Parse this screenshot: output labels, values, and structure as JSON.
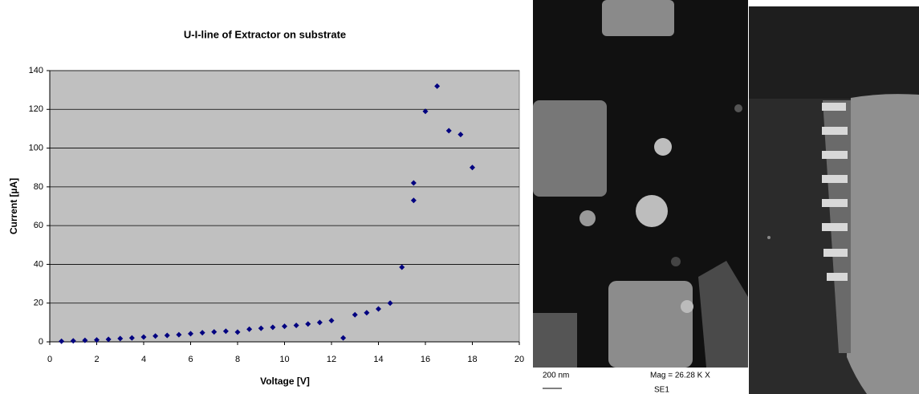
{
  "chart_data": {
    "type": "scatter",
    "title": "U-I-line of Extractor on substrate",
    "x_label": "Voltage [V]",
    "y_label": "Current [µA]",
    "x": [
      0.5,
      1,
      1.5,
      2,
      2.5,
      3,
      3.5,
      4,
      4.5,
      5,
      5.5,
      6,
      6.5,
      7,
      7.5,
      8,
      8.5,
      9,
      9.5,
      10,
      10.5,
      11,
      11.5,
      12,
      12.5,
      13,
      13.5,
      14,
      14.5,
      15,
      15.5,
      15.5,
      16,
      16.5,
      17,
      17.5,
      18
    ],
    "values": [
      0.3,
      0.5,
      0.8,
      1,
      1.3,
      1.7,
      2,
      2.5,
      3,
      3.3,
      3.7,
      4.2,
      4.7,
      5.1,
      5.5,
      5,
      6.5,
      7,
      7.5,
      8,
      8.5,
      9.2,
      10,
      11,
      2,
      14,
      15,
      17,
      20,
      38.5,
      82,
      73,
      119,
      132,
      109,
      107,
      90
    ],
    "color": "#000080",
    "xlim": [
      0,
      20
    ],
    "xticks": [
      0,
      2,
      4,
      6,
      8,
      10,
      12,
      14,
      16,
      18,
      20
    ],
    "ylim": [
      0,
      140
    ],
    "yticks": [
      0,
      20,
      40,
      60,
      80,
      100,
      120,
      140
    ],
    "grid": true
  },
  "sem_image": {
    "scale_bar": "200 nm",
    "magnification": "Mag =  26.28 K X",
    "detector": "SE1"
  }
}
